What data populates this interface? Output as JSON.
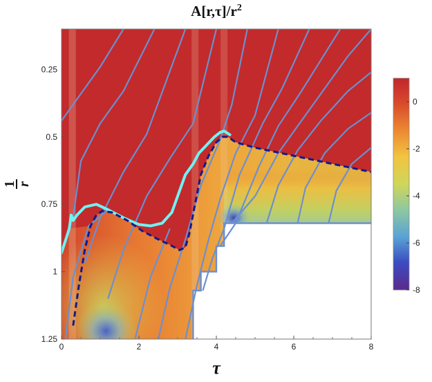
{
  "chart_data": {
    "type": "heatmap",
    "title": "A[r,τ]/r²",
    "title_main": "A[r,τ]/r",
    "title_exp": "2",
    "xlabel": "τ",
    "ylabel_numerator": "1",
    "ylabel_denominator": "r",
    "xlim": [
      0,
      8
    ],
    "ylim": [
      1.25,
      0.1
    ],
    "y_axis_inverted": true,
    "x_ticks": [
      0,
      2,
      4,
      6,
      8
    ],
    "x_tick_labels": [
      "0",
      "2",
      "4",
      "6",
      "8"
    ],
    "y_ticks": [
      0.25,
      0.5,
      0.75,
      1,
      1.25
    ],
    "y_tick_labels": [
      "0.25",
      "0.5",
      "0.75",
      "1",
      "1.25"
    ],
    "colorbar": {
      "range": [
        -8,
        1
      ],
      "ticks": [
        0,
        -2,
        -4,
        -6,
        -8
      ],
      "tick_labels": [
        "0",
        "-2",
        "-4",
        "-6",
        "-8"
      ],
      "colormap": [
        "#5b2a8c",
        "#3b4cc0",
        "#58a3d6",
        "#8fc8a0",
        "#cfd65a",
        "#f2c341",
        "#ec8a33",
        "#d94a2b",
        "#c1272d"
      ]
    },
    "excised_region": [
      [
        3.4,
        1.25
      ],
      [
        3.4,
        1.07
      ],
      [
        3.6,
        1.07
      ],
      [
        3.6,
        1.0
      ],
      [
        4.0,
        1.0
      ],
      [
        4.0,
        0.905
      ],
      [
        4.2,
        0.905
      ],
      [
        4.2,
        0.82
      ],
      [
        8,
        0.82
      ],
      [
        8,
        1.25
      ]
    ],
    "apparent_horizon": [
      [
        0,
        0.93
      ],
      [
        0.2,
        0.84
      ],
      [
        0.25,
        0.79
      ],
      [
        0.3,
        0.81
      ],
      [
        0.4,
        0.79
      ],
      [
        0.6,
        0.76
      ],
      [
        0.9,
        0.75
      ],
      [
        1.2,
        0.77
      ],
      [
        1.6,
        0.8
      ],
      [
        2.0,
        0.825
      ],
      [
        2.3,
        0.83
      ],
      [
        2.6,
        0.82
      ],
      [
        2.85,
        0.78
      ],
      [
        3.05,
        0.7
      ],
      [
        3.2,
        0.64
      ],
      [
        3.4,
        0.6
      ],
      [
        3.55,
        0.56
      ],
      [
        3.75,
        0.53
      ],
      [
        3.95,
        0.5
      ],
      [
        4.1,
        0.483
      ],
      [
        4.2,
        0.478
      ],
      [
        4.35,
        0.492
      ]
    ],
    "event_horizon": [
      [
        0.3,
        1.2
      ],
      [
        0.45,
        1.05
      ],
      [
        0.6,
        0.92
      ],
      [
        0.75,
        0.83
      ],
      [
        0.9,
        0.79
      ],
      [
        1.05,
        0.775
      ],
      [
        1.3,
        0.78
      ],
      [
        1.7,
        0.81
      ],
      [
        2.1,
        0.85
      ],
      [
        2.5,
        0.88
      ],
      [
        2.8,
        0.9
      ],
      [
        3.05,
        0.92
      ],
      [
        3.2,
        0.91
      ],
      [
        3.3,
        0.86
      ],
      [
        3.45,
        0.75
      ],
      [
        3.6,
        0.64
      ],
      [
        3.8,
        0.57
      ],
      [
        4.0,
        0.52
      ],
      [
        4.15,
        0.5
      ],
      [
        4.3,
        0.5
      ],
      [
        4.5,
        0.52
      ],
      [
        5.0,
        0.54
      ],
      [
        6.0,
        0.57
      ],
      [
        7.0,
        0.6
      ],
      [
        8.0,
        0.63
      ]
    ],
    "geodesics": [
      [
        [
          0,
          0.44
        ],
        [
          0.5,
          0.34
        ],
        [
          1,
          0.24
        ],
        [
          1.6,
          0.1
        ]
      ],
      [
        [
          0.3,
          0.8
        ],
        [
          0.5,
          0.59
        ],
        [
          1,
          0.45
        ],
        [
          1.6,
          0.33
        ],
        [
          2.4,
          0.1
        ]
      ],
      [
        [
          0.6,
          0.97
        ],
        [
          1,
          0.8
        ],
        [
          1.6,
          0.63
        ],
        [
          2.2,
          0.49
        ],
        [
          3.2,
          0.1
        ]
      ],
      [
        [
          1.2,
          1.1
        ],
        [
          1.6,
          0.92
        ],
        [
          2.2,
          0.72
        ],
        [
          2.8,
          0.58
        ],
        [
          3.4,
          0.45
        ],
        [
          4.0,
          0.1
        ]
      ],
      [
        [
          2.5,
          1.25
        ],
        [
          2.8,
          1.06
        ],
        [
          3.2,
          0.88
        ],
        [
          3.6,
          0.68
        ],
        [
          4.1,
          0.51
        ],
        [
          4.4,
          0.38
        ],
        [
          4.8,
          0.1
        ]
      ],
      [
        [
          3.2,
          1.25
        ],
        [
          3.5,
          1.05
        ],
        [
          3.8,
          0.88
        ],
        [
          4.1,
          0.73
        ],
        [
          4.5,
          0.56
        ],
        [
          5.0,
          0.42
        ],
        [
          5.6,
          0.1
        ]
      ],
      [
        [
          3.65,
          1.07
        ],
        [
          3.9,
          0.95
        ],
        [
          4.2,
          0.84
        ],
        [
          4.6,
          0.64
        ],
        [
          5.2,
          0.45
        ],
        [
          5.7,
          0.32
        ],
        [
          6.4,
          0.1
        ]
      ],
      [
        [
          4.1,
          0.905
        ],
        [
          4.5,
          0.82
        ],
        [
          5.1,
          0.61
        ],
        [
          5.6,
          0.46
        ],
        [
          6.2,
          0.33
        ],
        [
          7.2,
          0.1
        ]
      ],
      [
        [
          4.4,
          0.82
        ],
        [
          5.0,
          0.72
        ],
        [
          5.6,
          0.56
        ],
        [
          6.1,
          0.46
        ],
        [
          6.7,
          0.34
        ],
        [
          7.4,
          0.2
        ],
        [
          8.0,
          0.1
        ]
      ],
      [
        [
          5.3,
          0.82
        ],
        [
          5.6,
          0.68
        ],
        [
          6.1,
          0.55
        ],
        [
          6.7,
          0.44
        ],
        [
          7.4,
          0.33
        ],
        [
          8.0,
          0.26
        ]
      ],
      [
        [
          6.1,
          0.82
        ],
        [
          6.3,
          0.69
        ],
        [
          6.8,
          0.56
        ],
        [
          7.4,
          0.47
        ],
        [
          8.0,
          0.41
        ]
      ],
      [
        [
          6.9,
          0.82
        ],
        [
          7.1,
          0.7
        ],
        [
          7.5,
          0.6
        ],
        [
          8.0,
          0.54
        ]
      ],
      [
        [
          0.1,
          1.25
        ],
        [
          0.3,
          1.02
        ],
        [
          0.7,
          0.83
        ],
        [
          1.2,
          0.77
        ]
      ],
      [
        [
          1.9,
          1.25
        ],
        [
          2.3,
          1.02
        ],
        [
          2.8,
          0.84
        ]
      ]
    ]
  }
}
